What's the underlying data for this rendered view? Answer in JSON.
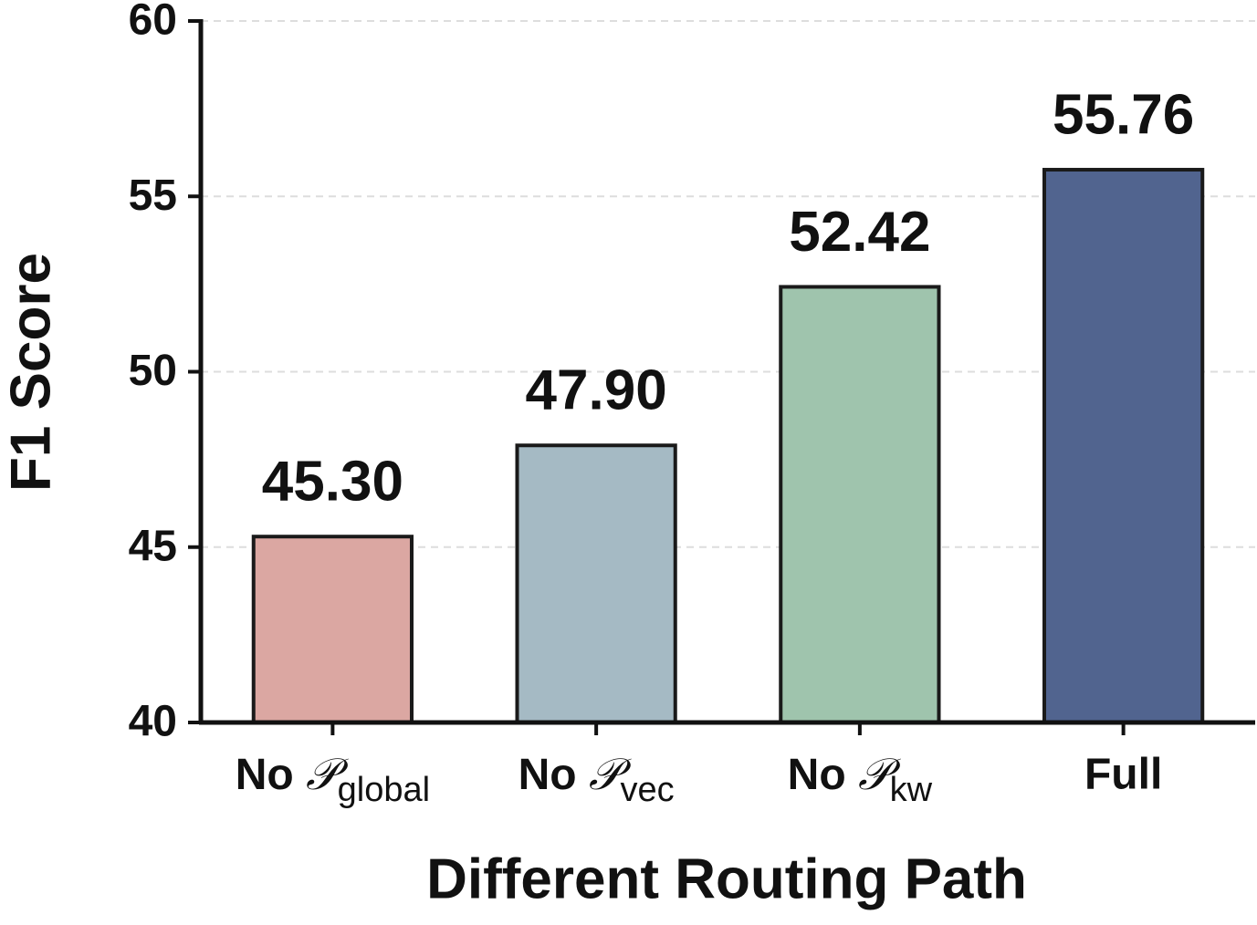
{
  "chart_data": {
    "type": "bar",
    "x_label": "Different Routing Path",
    "y_label": "F1 Score",
    "categories": [
      "No 𝒫global",
      "No 𝒫vec",
      "No 𝒫kw",
      "Full"
    ],
    "values": [
      45.3,
      47.9,
      52.42,
      55.76
    ],
    "value_labels": [
      "45.30",
      "47.90",
      "52.42",
      "55.76"
    ],
    "colors": [
      "#dba7a2",
      "#a5bac4",
      "#9fc4ad",
      "#51648f"
    ],
    "ylim": [
      40,
      60
    ],
    "yticks": [
      40,
      45,
      50,
      55,
      60
    ],
    "grid": true
  }
}
